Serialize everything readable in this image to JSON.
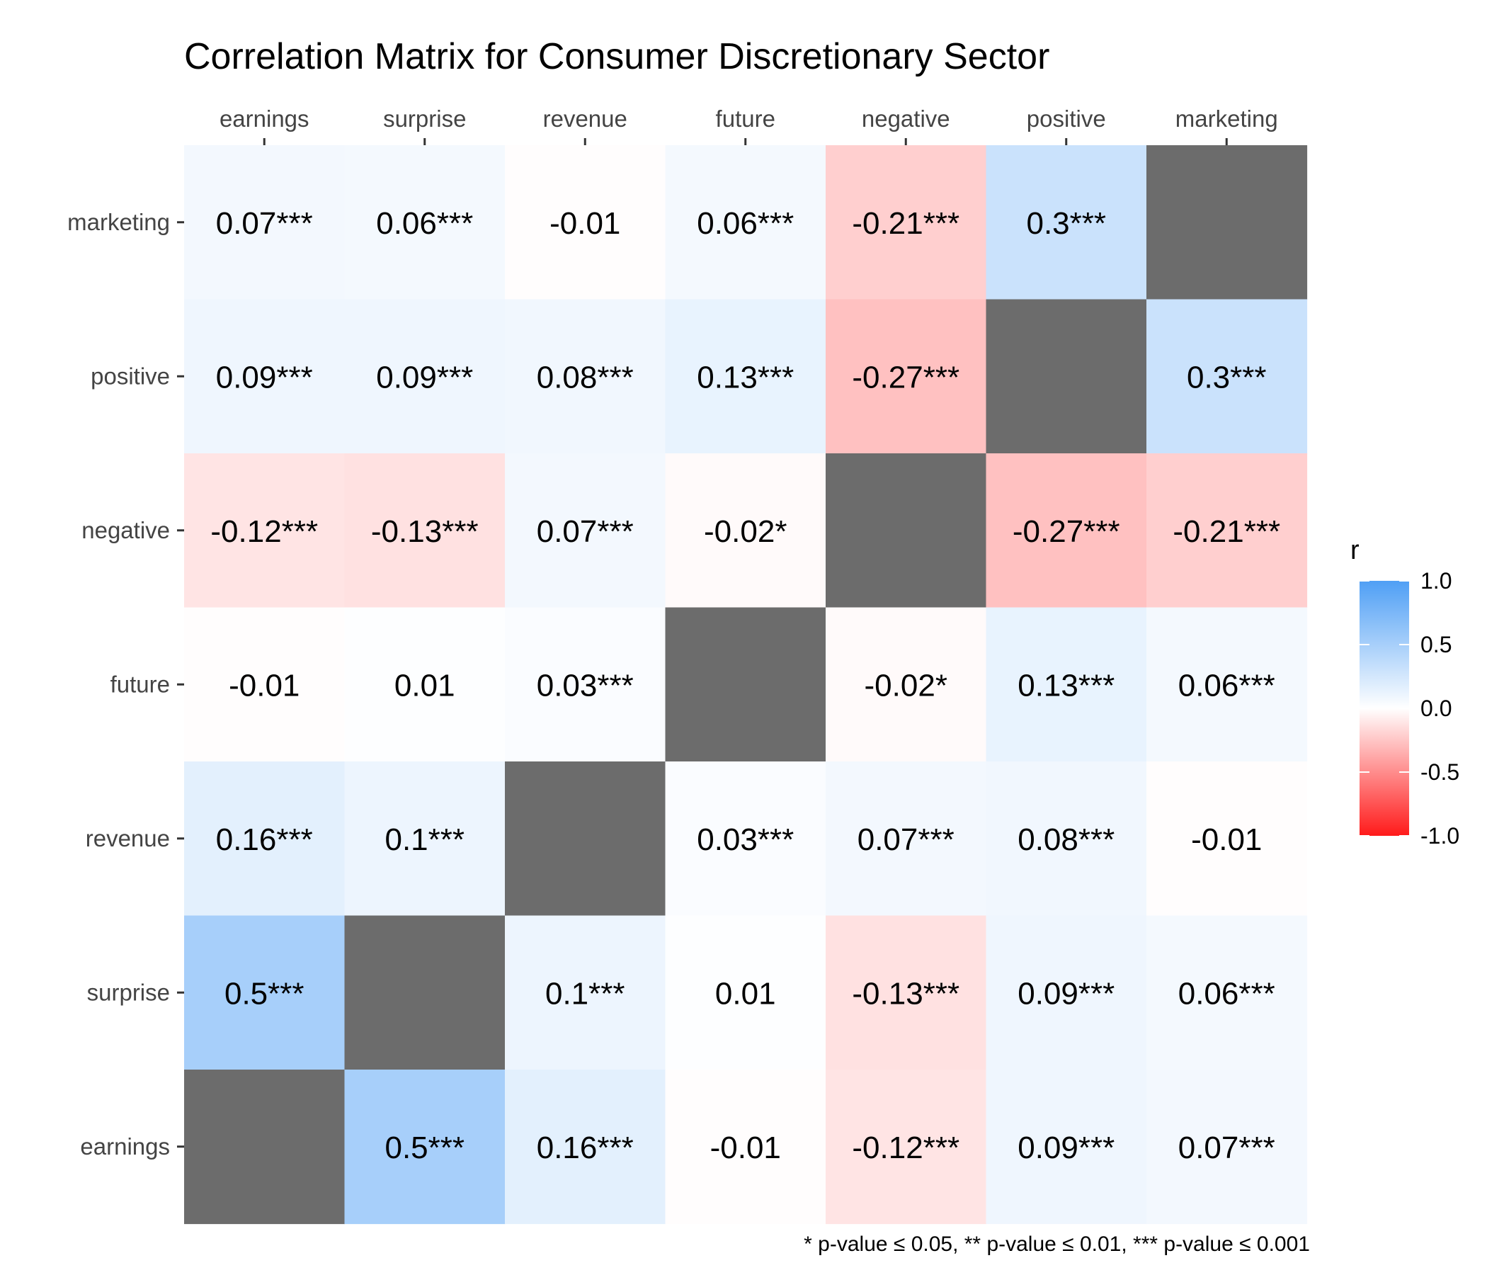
{
  "chart_data": {
    "type": "heatmap",
    "title": "Correlation Matrix for Consumer Discretionary Sector",
    "variables": [
      "earnings",
      "surprise",
      "revenue",
      "future",
      "negative",
      "positive",
      "marketing"
    ],
    "column_order": [
      "earnings",
      "surprise",
      "revenue",
      "future",
      "negative",
      "positive",
      "marketing"
    ],
    "row_order_top_to_bottom": [
      "marketing",
      "positive",
      "negative",
      "future",
      "revenue",
      "surprise",
      "earnings"
    ],
    "values": [
      [
        1.0,
        0.5,
        0.16,
        -0.01,
        -0.12,
        0.09,
        0.07
      ],
      [
        0.5,
        1.0,
        0.1,
        0.01,
        -0.13,
        0.09,
        0.06
      ],
      [
        0.16,
        0.1,
        1.0,
        0.03,
        0.07,
        0.08,
        -0.01
      ],
      [
        -0.01,
        0.01,
        0.03,
        1.0,
        -0.02,
        0.13,
        0.06
      ],
      [
        -0.12,
        -0.13,
        0.07,
        -0.02,
        1.0,
        -0.27,
        -0.21
      ],
      [
        0.09,
        0.09,
        0.08,
        0.13,
        -0.27,
        1.0,
        0.3
      ],
      [
        0.07,
        0.06,
        -0.01,
        0.06,
        -0.21,
        0.3,
        1.0
      ]
    ],
    "labels": [
      [
        "",
        "0.5***",
        "0.16***",
        "-0.01",
        "-0.12***",
        "0.09***",
        "0.07***"
      ],
      [
        "0.5***",
        "",
        "0.1***",
        "0.01",
        "-0.13***",
        "0.09***",
        "0.06***"
      ],
      [
        "0.16***",
        "0.1***",
        "",
        "0.03***",
        "0.07***",
        "0.08***",
        "-0.01"
      ],
      [
        "-0.01",
        "0.01",
        "0.03***",
        "",
        "-0.02*",
        "0.13***",
        "0.06***"
      ],
      [
        "-0.12***",
        "-0.13***",
        "0.07***",
        "-0.02*",
        "",
        "-0.27***",
        "-0.21***"
      ],
      [
        "0.09***",
        "0.09***",
        "0.08***",
        "0.13***",
        "-0.27***",
        "",
        "0.3***"
      ],
      [
        "0.07***",
        "0.06***",
        "-0.01",
        "0.06***",
        "-0.21***",
        "0.3***",
        ""
      ]
    ],
    "legend": {
      "title": "r",
      "ticks": [
        "1.0",
        "0.5",
        "0.0",
        "-0.5",
        "-1.0"
      ],
      "range": [
        -1,
        1
      ],
      "placement": "right"
    },
    "colors": {
      "positive": "#4f9ff5",
      "neutral": "#ffffff",
      "negative": "#ff1a1a",
      "diagonal": "#6c6c6c"
    },
    "footnote": "* p-value ≤ 0.05, ** p-value ≤ 0.01, *** p-value ≤ 0.001"
  }
}
